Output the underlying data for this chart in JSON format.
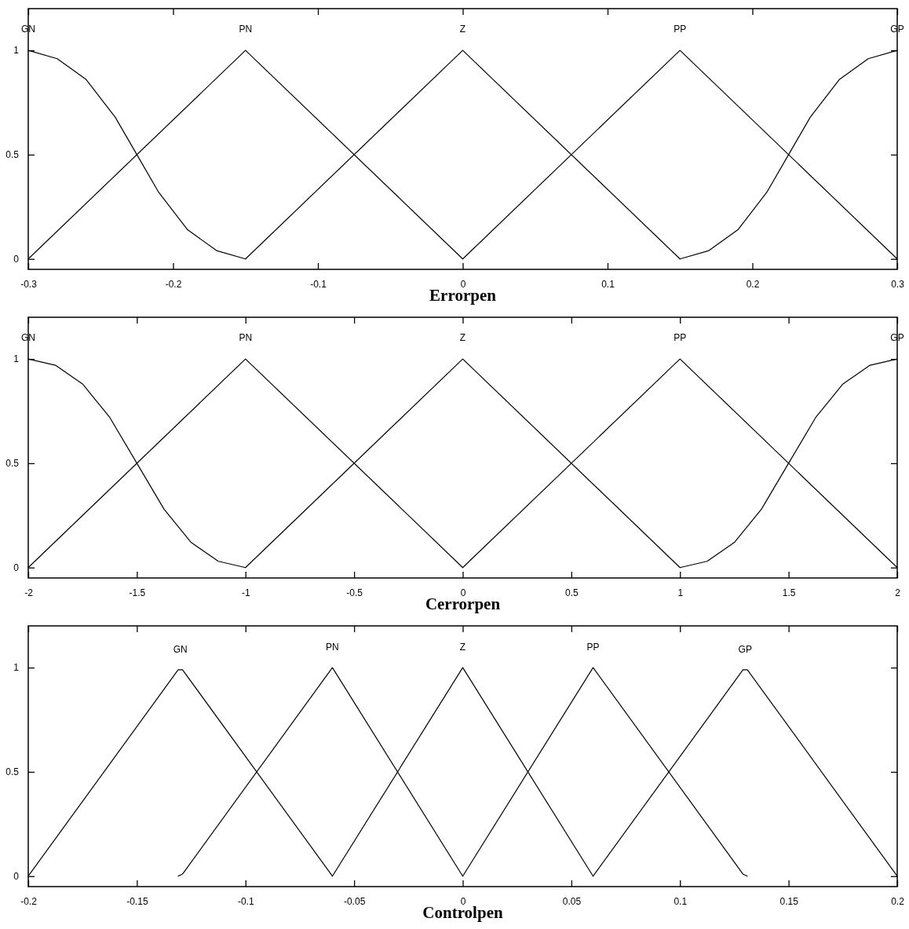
{
  "chart_data": [
    {
      "type": "line",
      "xlabel": "Errorpen",
      "legend": "top",
      "xlim": [
        -0.3,
        0.3
      ],
      "xticks": [
        -0.3,
        -0.2,
        -0.1,
        0,
        0.1,
        0.2,
        0.3
      ],
      "ylim": [
        -0.05,
        1.2
      ],
      "yticks": [
        0,
        0.5,
        1
      ],
      "series": [
        {
          "name": "GN",
          "color": "#000000",
          "x": [
            -0.3,
            -0.28,
            -0.26,
            -0.24,
            -0.225,
            -0.21,
            -0.19,
            -0.17,
            -0.15
          ],
          "values": [
            1,
            0.96,
            0.86,
            0.68,
            0.5,
            0.32,
            0.14,
            0.04,
            0
          ]
        },
        {
          "name": "PN",
          "color": "#000000",
          "x": [
            -0.3,
            -0.15,
            0
          ],
          "values": [
            0,
            1,
            0
          ]
        },
        {
          "name": "Z",
          "color": "#000000",
          "x": [
            -0.15,
            0,
            0.15
          ],
          "values": [
            0,
            1,
            0
          ]
        },
        {
          "name": "PP",
          "color": "#000000",
          "x": [
            0,
            0.15,
            0.3
          ],
          "values": [
            0,
            1,
            0
          ]
        },
        {
          "name": "GP",
          "color": "#000000",
          "x": [
            0.15,
            0.17,
            0.19,
            0.21,
            0.225,
            0.24,
            0.26,
            0.28,
            0.3
          ],
          "values": [
            0,
            0.04,
            0.14,
            0.32,
            0.5,
            0.68,
            0.86,
            0.96,
            1
          ]
        }
      ]
    },
    {
      "type": "line",
      "xlabel": "Cerrorpen",
      "legend": "top",
      "xlim": [
        -2,
        2
      ],
      "xticks": [
        -2,
        -1.5,
        -1,
        -0.5,
        0,
        0.5,
        1,
        1.5,
        2
      ],
      "ylim": [
        -0.05,
        1.2
      ],
      "yticks": [
        0,
        0.5,
        1
      ],
      "series": [
        {
          "name": "GN",
          "color": "#000000",
          "x": [
            -2,
            -1.875,
            -1.75,
            -1.625,
            -1.5,
            -1.375,
            -1.25,
            -1.125,
            -1
          ],
          "values": [
            1,
            0.97,
            0.88,
            0.72,
            0.5,
            0.28,
            0.12,
            0.03,
            0
          ]
        },
        {
          "name": "PN",
          "color": "#000000",
          "x": [
            -2,
            -1,
            0
          ],
          "values": [
            0,
            1,
            0
          ]
        },
        {
          "name": "Z",
          "color": "#000000",
          "x": [
            -1,
            0,
            1
          ],
          "values": [
            0,
            1,
            0
          ]
        },
        {
          "name": "PP",
          "color": "#000000",
          "x": [
            0,
            1,
            2
          ],
          "values": [
            0,
            1,
            0
          ]
        },
        {
          "name": "GP",
          "color": "#000000",
          "x": [
            1,
            1.125,
            1.25,
            1.375,
            1.5,
            1.625,
            1.75,
            1.875,
            2
          ],
          "values": [
            0,
            0.03,
            0.12,
            0.28,
            0.5,
            0.72,
            0.88,
            0.97,
            1
          ]
        }
      ]
    },
    {
      "type": "line",
      "xlabel": "Controlpen",
      "xlim": [
        -0.2,
        0.2
      ],
      "xticks": [
        -0.2,
        -0.15,
        -0.1,
        -0.05,
        0,
        0.05,
        0.1,
        0.15,
        0.2
      ],
      "ylim": [
        -0.05,
        1.2
      ],
      "yticks": [
        0,
        0.5,
        1
      ],
      "series": [
        {
          "name": "GN",
          "color": "#000000",
          "x": [
            -0.2,
            -0.131,
            -0.129,
            -0.06
          ],
          "values": [
            0,
            0.99,
            0.99,
            0
          ]
        },
        {
          "name": "PN",
          "color": "#000000",
          "x": [
            -0.131,
            -0.129,
            -0.06,
            0
          ],
          "values": [
            0,
            0.01,
            1,
            0
          ]
        },
        {
          "name": "Z",
          "color": "#000000",
          "x": [
            -0.06,
            0,
            0.06
          ],
          "values": [
            0,
            1,
            0
          ]
        },
        {
          "name": "PP",
          "color": "#000000",
          "x": [
            0,
            0.06,
            0.129,
            0.131
          ],
          "values": [
            0,
            1,
            0.01,
            0
          ]
        },
        {
          "name": "GP",
          "color": "#000000",
          "x": [
            0.06,
            0.129,
            0.131,
            0.2
          ],
          "values": [
            0,
            0.99,
            0.99,
            0
          ]
        }
      ]
    }
  ]
}
